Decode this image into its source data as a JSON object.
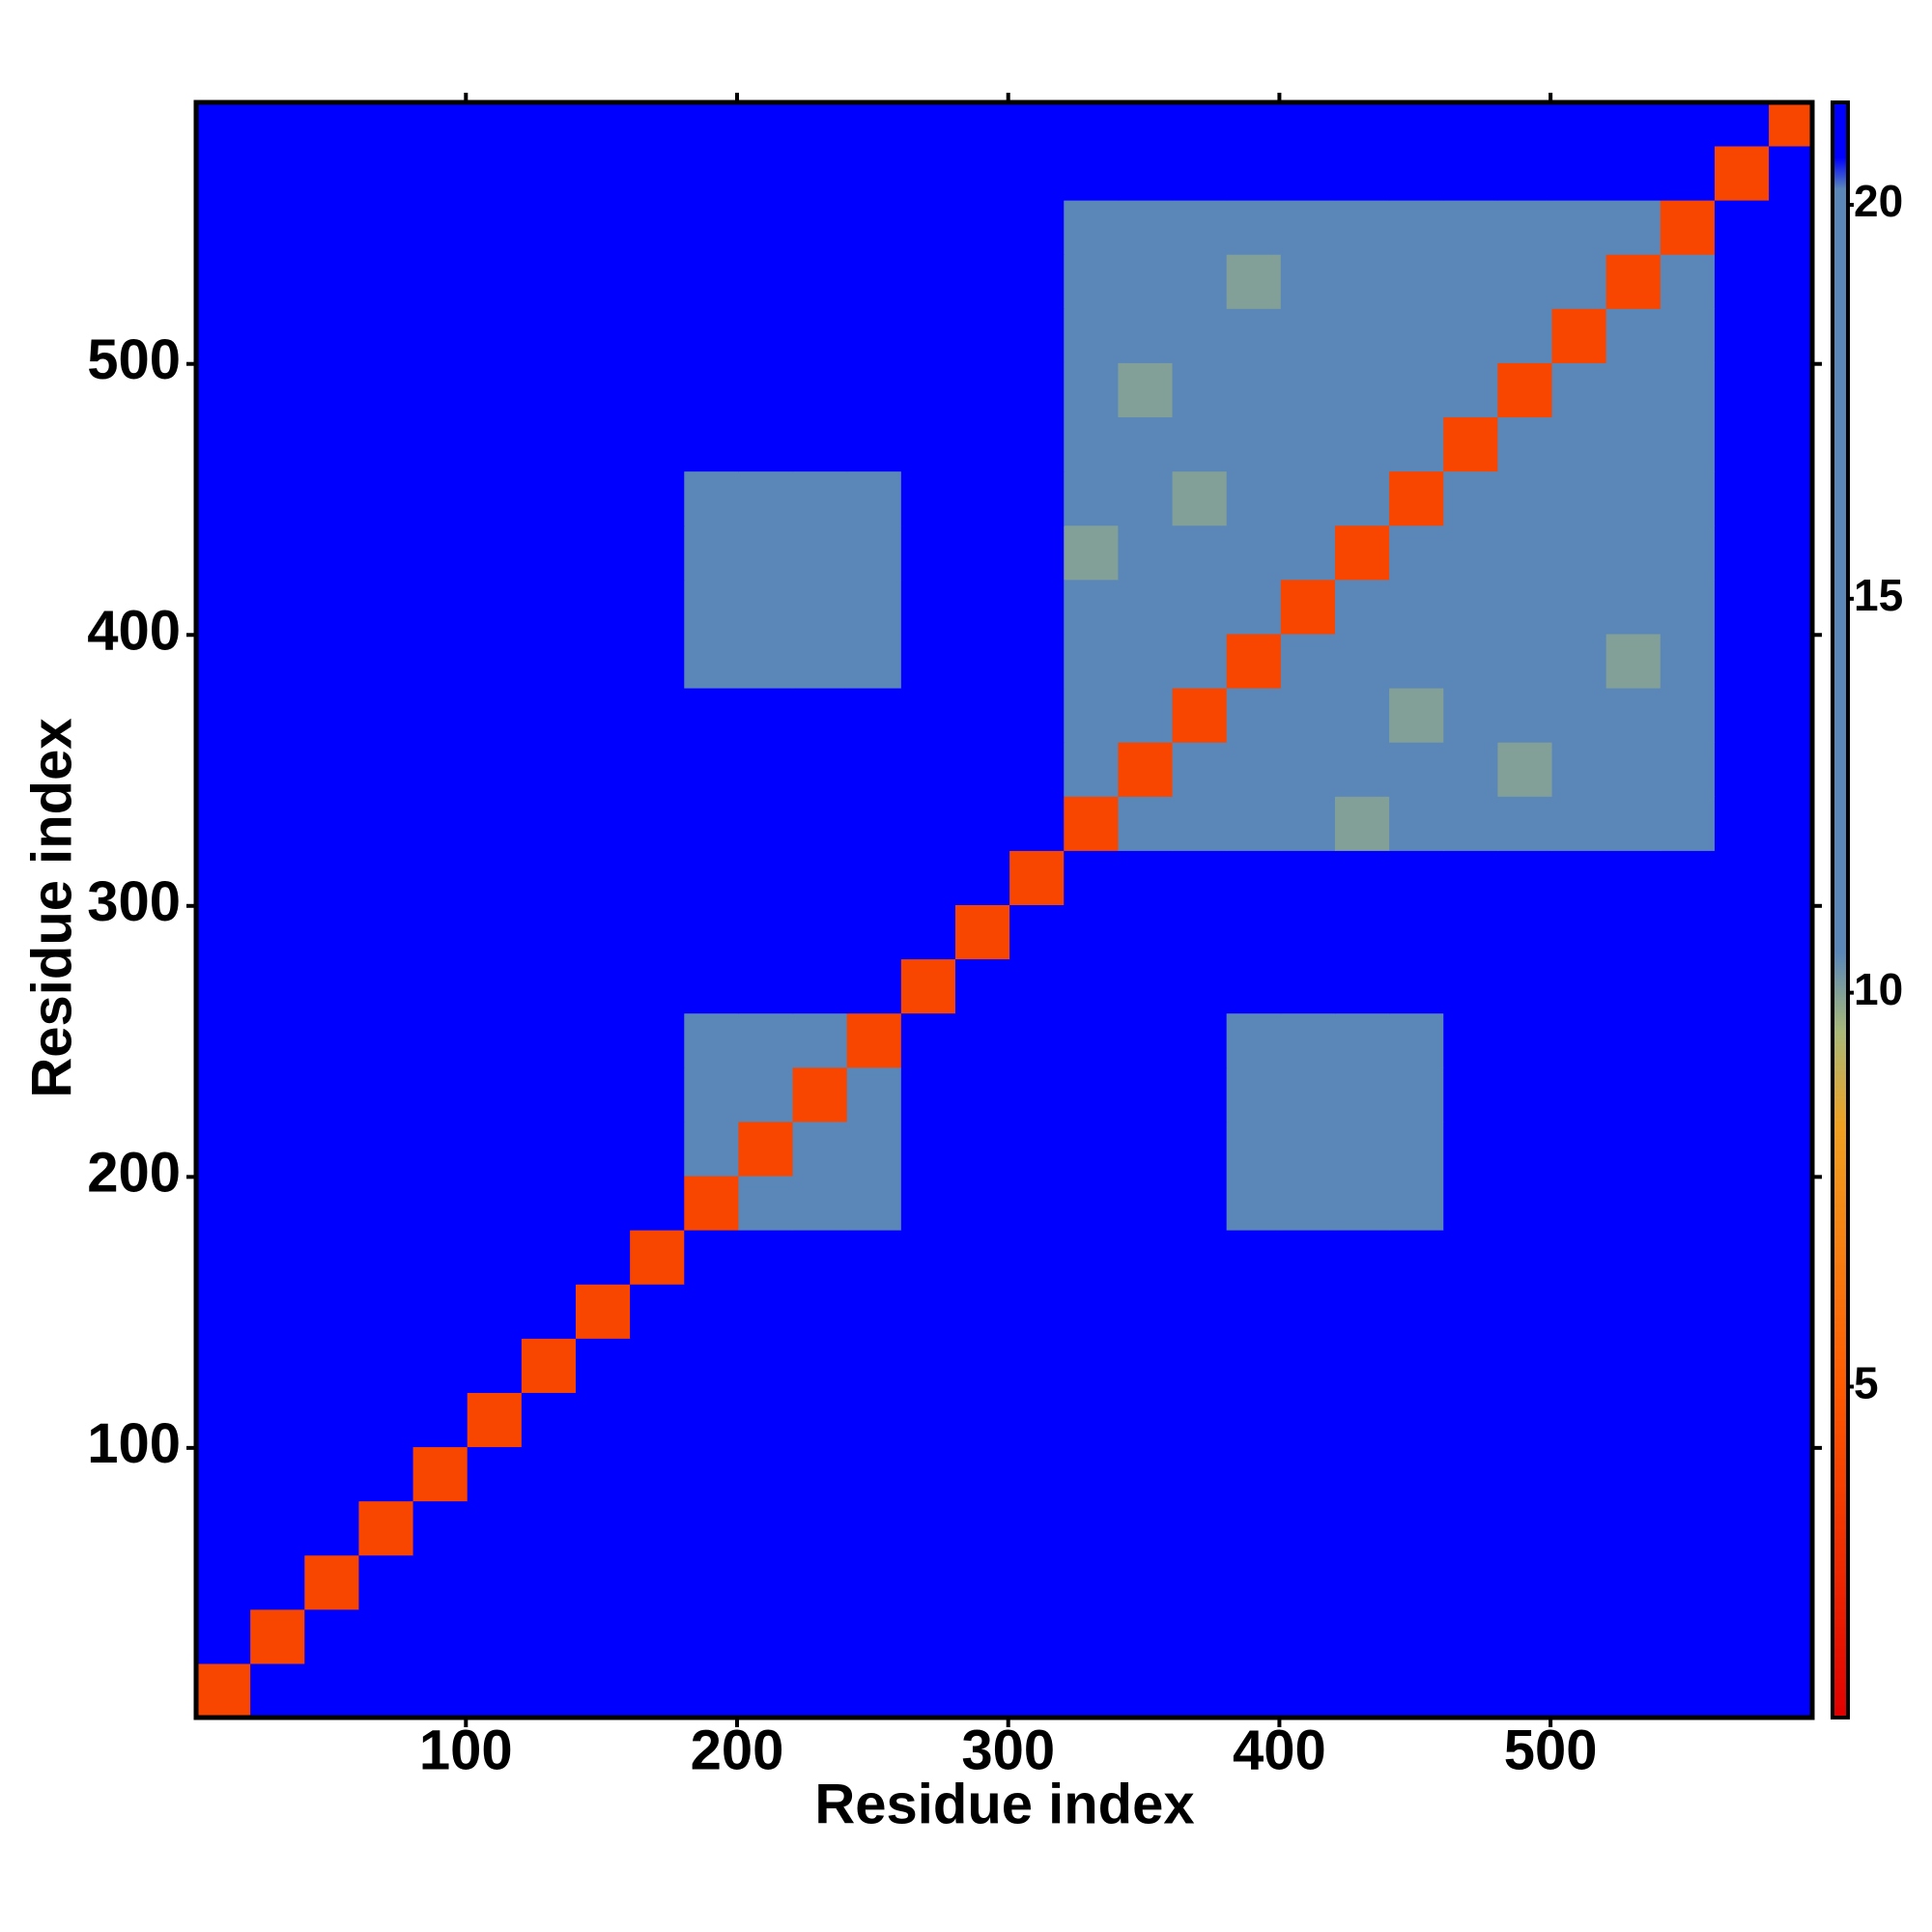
{
  "chart_data": {
    "type": "heatmap",
    "x_label": "Residue index",
    "y_label": "Residue index",
    "xlim": [
      0.5,
      596.5
    ],
    "ylim": [
      0.5,
      596.5
    ],
    "xticks": [
      100,
      200,
      300,
      400,
      500
    ],
    "yticks": [
      100,
      200,
      300,
      400,
      500
    ],
    "xbins": [
      0.5,
      20.5,
      40.5,
      60.5,
      80.5,
      100.5,
      120.5,
      140.5,
      160.5,
      180.5,
      200.5,
      220.5,
      240.5,
      260.5,
      280.5,
      300.5,
      320.5,
      340.5,
      360.5,
      380.5,
      400.5,
      420.5,
      440.5,
      460.5,
      480.5,
      500.5,
      520.5,
      540.5,
      560.5,
      580.5,
      596.5
    ],
    "ybins": [
      0.5,
      20.5,
      40.5,
      60.5,
      80.5,
      100.5,
      120.5,
      140.5,
      160.5,
      180.5,
      200.5,
      220.5,
      240.5,
      260.5,
      280.5,
      300.5,
      320.5,
      340.5,
      360.5,
      380.5,
      400.5,
      420.5,
      440.5,
      460.5,
      480.5,
      500.5,
      520.5,
      540.5,
      560.5,
      580.5,
      596.5
    ],
    "clim": [
      0.8,
      21.3
    ],
    "cticks": [
      5,
      10,
      15,
      20
    ],
    "colorscale": [
      [
        0.8,
        "#e00000"
      ],
      [
        5,
        "#ff5a00"
      ],
      [
        8.3,
        "#f0a020"
      ],
      [
        9.5,
        "#a9b978"
      ],
      [
        10.5,
        "#5b87b8"
      ],
      [
        20.2,
        "#5b87b8"
      ],
      [
        20.6,
        "#0000ff"
      ],
      [
        21.3,
        "#0000ff"
      ]
    ],
    "values": [
      [
        4,
        21,
        21,
        21,
        21,
        21,
        21,
        21,
        21,
        21,
        21,
        21,
        21,
        21,
        21,
        21,
        21,
        21,
        21,
        21,
        21,
        21,
        21,
        21,
        21,
        21,
        21,
        21,
        21,
        21
      ],
      [
        21,
        4,
        21,
        21,
        21,
        21,
        21,
        21,
        21,
        21,
        21,
        21,
        21,
        21,
        21,
        21,
        21,
        21,
        21,
        21,
        21,
        21,
        21,
        21,
        21,
        21,
        21,
        21,
        21,
        21
      ],
      [
        21,
        21,
        4,
        21,
        21,
        21,
        21,
        21,
        21,
        21,
        21,
        21,
        21,
        21,
        21,
        21,
        21,
        21,
        21,
        21,
        21,
        21,
        21,
        21,
        21,
        21,
        21,
        21,
        21,
        21
      ],
      [
        21,
        21,
        21,
        4,
        21,
        21,
        21,
        21,
        21,
        21,
        21,
        21,
        21,
        21,
        21,
        21,
        21,
        21,
        21,
        21,
        21,
        21,
        21,
        21,
        21,
        21,
        21,
        21,
        21,
        21
      ],
      [
        21,
        21,
        21,
        21,
        4,
        21,
        21,
        21,
        21,
        21,
        21,
        21,
        21,
        21,
        21,
        21,
        21,
        21,
        21,
        21,
        21,
        21,
        21,
        21,
        21,
        21,
        21,
        21,
        21,
        21
      ],
      [
        21,
        21,
        21,
        21,
        21,
        4,
        21,
        21,
        21,
        21,
        21,
        21,
        21,
        21,
        21,
        21,
        21,
        21,
        21,
        21,
        21,
        21,
        21,
        21,
        21,
        21,
        21,
        21,
        21,
        21
      ],
      [
        21,
        21,
        21,
        21,
        21,
        21,
        4,
        21,
        21,
        21,
        21,
        21,
        21,
        21,
        21,
        21,
        21,
        21,
        21,
        21,
        21,
        21,
        21,
        21,
        21,
        21,
        21,
        21,
        21,
        21
      ],
      [
        21,
        21,
        21,
        21,
        21,
        21,
        21,
        4,
        21,
        21,
        21,
        21,
        21,
        21,
        21,
        21,
        21,
        21,
        21,
        21,
        21,
        21,
        21,
        21,
        21,
        21,
        21,
        21,
        21,
        21
      ],
      [
        21,
        21,
        21,
        21,
        21,
        21,
        21,
        21,
        4,
        21,
        21,
        21,
        21,
        21,
        21,
        21,
        21,
        21,
        21,
        21,
        21,
        21,
        21,
        21,
        21,
        21,
        21,
        21,
        21,
        21
      ],
      [
        21,
        21,
        21,
        21,
        21,
        21,
        21,
        21,
        21,
        4,
        14,
        14,
        14,
        21,
        21,
        21,
        21,
        21,
        21,
        19,
        19,
        19,
        19,
        21,
        21,
        21,
        21,
        21,
        21,
        21
      ],
      [
        21,
        21,
        21,
        21,
        21,
        21,
        21,
        21,
        21,
        14,
        4,
        14,
        14,
        21,
        21,
        21,
        21,
        21,
        21,
        19,
        19,
        19,
        19,
        21,
        21,
        21,
        21,
        21,
        21,
        21
      ],
      [
        21,
        21,
        21,
        21,
        21,
        21,
        21,
        21,
        21,
        14,
        14,
        4,
        14,
        21,
        21,
        21,
        21,
        21,
        21,
        19,
        19,
        19,
        19,
        21,
        21,
        21,
        21,
        21,
        21,
        21
      ],
      [
        21,
        21,
        21,
        21,
        21,
        21,
        21,
        21,
        21,
        14,
        14,
        14,
        4,
        21,
        21,
        21,
        21,
        21,
        21,
        19,
        19,
        19,
        19,
        21,
        21,
        21,
        21,
        21,
        21,
        21
      ],
      [
        21,
        21,
        21,
        21,
        21,
        21,
        21,
        21,
        21,
        21,
        21,
        21,
        21,
        4,
        21,
        21,
        21,
        21,
        21,
        21,
        21,
        21,
        21,
        21,
        21,
        21,
        21,
        21,
        21,
        21
      ],
      [
        21,
        21,
        21,
        21,
        21,
        21,
        21,
        21,
        21,
        21,
        21,
        21,
        21,
        21,
        4,
        21,
        21,
        21,
        21,
        21,
        21,
        21,
        21,
        21,
        21,
        21,
        21,
        21,
        21,
        21
      ],
      [
        21,
        21,
        21,
        21,
        21,
        21,
        21,
        21,
        21,
        21,
        21,
        21,
        21,
        21,
        21,
        4,
        21,
        21,
        21,
        21,
        21,
        21,
        21,
        21,
        21,
        21,
        21,
        21,
        21,
        21
      ],
      [
        21,
        21,
        21,
        21,
        21,
        21,
        21,
        21,
        21,
        21,
        21,
        21,
        21,
        21,
        21,
        21,
        4,
        14,
        14,
        14,
        14,
        10,
        14,
        14,
        14,
        14,
        14,
        14,
        21,
        21
      ],
      [
        21,
        21,
        21,
        21,
        21,
        21,
        21,
        21,
        21,
        21,
        21,
        21,
        21,
        21,
        21,
        21,
        14,
        4,
        14,
        14,
        14,
        14,
        14,
        14,
        10,
        14,
        14,
        14,
        21,
        21
      ],
      [
        21,
        21,
        21,
        21,
        21,
        21,
        21,
        21,
        21,
        21,
        21,
        21,
        21,
        21,
        21,
        21,
        14,
        14,
        4,
        14,
        14,
        14,
        10,
        14,
        14,
        14,
        14,
        14,
        21,
        21
      ],
      [
        21,
        21,
        21,
        21,
        21,
        21,
        21,
        21,
        21,
        19,
        19,
        19,
        19,
        21,
        21,
        21,
        14,
        14,
        14,
        4,
        14,
        14,
        14,
        14,
        14,
        14,
        10,
        14,
        21,
        21
      ],
      [
        21,
        21,
        21,
        21,
        21,
        21,
        21,
        21,
        21,
        19,
        19,
        19,
        19,
        21,
        21,
        21,
        14,
        14,
        14,
        14,
        4,
        14,
        14,
        14,
        14,
        14,
        14,
        14,
        21,
        21
      ],
      [
        21,
        21,
        21,
        21,
        21,
        21,
        21,
        21,
        21,
        19,
        19,
        19,
        19,
        21,
        21,
        21,
        10,
        14,
        14,
        14,
        14,
        4,
        14,
        14,
        14,
        14,
        14,
        14,
        21,
        21
      ],
      [
        21,
        21,
        21,
        21,
        21,
        21,
        21,
        21,
        21,
        19,
        19,
        19,
        19,
        21,
        21,
        21,
        14,
        14,
        10,
        14,
        14,
        14,
        4,
        14,
        14,
        14,
        14,
        14,
        21,
        21
      ],
      [
        21,
        21,
        21,
        21,
        21,
        21,
        21,
        21,
        21,
        21,
        21,
        21,
        21,
        21,
        21,
        21,
        14,
        14,
        14,
        14,
        14,
        14,
        14,
        4,
        14,
        14,
        14,
        14,
        21,
        21
      ],
      [
        21,
        21,
        21,
        21,
        21,
        21,
        21,
        21,
        21,
        21,
        21,
        21,
        21,
        21,
        21,
        21,
        14,
        10,
        14,
        14,
        14,
        14,
        14,
        14,
        4,
        14,
        14,
        14,
        21,
        21
      ],
      [
        21,
        21,
        21,
        21,
        21,
        21,
        21,
        21,
        21,
        21,
        21,
        21,
        21,
        21,
        21,
        21,
        14,
        14,
        14,
        14,
        14,
        14,
        14,
        14,
        14,
        4,
        14,
        14,
        21,
        21
      ],
      [
        21,
        21,
        21,
        21,
        21,
        21,
        21,
        21,
        21,
        21,
        21,
        21,
        21,
        21,
        21,
        21,
        14,
        14,
        14,
        10,
        14,
        14,
        14,
        14,
        14,
        14,
        4,
        14,
        21,
        21
      ],
      [
        21,
        21,
        21,
        21,
        21,
        21,
        21,
        21,
        21,
        21,
        21,
        21,
        21,
        21,
        21,
        21,
        14,
        14,
        14,
        14,
        14,
        14,
        14,
        14,
        14,
        14,
        14,
        4,
        21,
        21
      ],
      [
        21,
        21,
        21,
        21,
        21,
        21,
        21,
        21,
        21,
        21,
        21,
        21,
        21,
        21,
        21,
        21,
        21,
        21,
        21,
        21,
        21,
        21,
        21,
        21,
        21,
        21,
        21,
        21,
        4,
        21
      ],
      [
        21,
        21,
        21,
        21,
        21,
        21,
        21,
        21,
        21,
        21,
        21,
        21,
        21,
        21,
        21,
        21,
        21,
        21,
        21,
        21,
        21,
        21,
        21,
        21,
        21,
        21,
        21,
        21,
        21,
        4
      ]
    ]
  }
}
